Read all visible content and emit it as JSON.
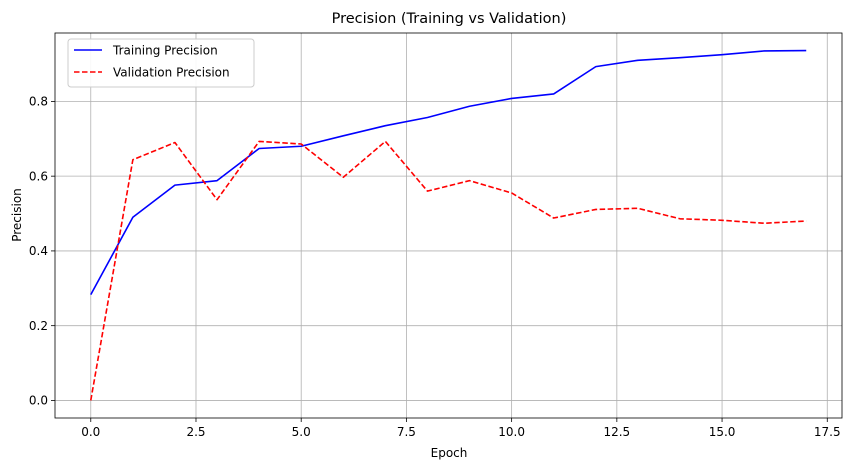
{
  "chart_data": {
    "type": "line",
    "title": "Precision (Training vs Validation)",
    "xlabel": "Epoch",
    "ylabel": "Precision",
    "xlim": [
      -0.85,
      17.85
    ],
    "ylim": [
      -0.047,
      0.983
    ],
    "xticks": [
      0.0,
      2.5,
      5.0,
      7.5,
      10.0,
      12.5,
      15.0,
      17.5
    ],
    "xtick_labels": [
      "0.0",
      "2.5",
      "5.0",
      "7.5",
      "10.0",
      "12.5",
      "15.0",
      "17.5"
    ],
    "yticks": [
      0.0,
      0.2,
      0.4,
      0.6,
      0.8
    ],
    "ytick_labels": [
      "0.0",
      "0.2",
      "0.4",
      "0.6",
      "0.8"
    ],
    "grid": true,
    "legend_position": "upper-left",
    "x": [
      0,
      1,
      2,
      3,
      4,
      5,
      6,
      7,
      8,
      9,
      10,
      11,
      12,
      13,
      14,
      15,
      16,
      17
    ],
    "series": [
      {
        "name": "Training Precision",
        "color": "#0000ff",
        "style": "solid",
        "values": [
          0.283,
          0.49,
          0.576,
          0.588,
          0.674,
          0.68,
          0.708,
          0.735,
          0.757,
          0.787,
          0.808,
          0.82,
          0.893,
          0.91,
          0.917,
          0.925,
          0.935,
          0.936
        ]
      },
      {
        "name": "Validation Precision",
        "color": "#ff0000",
        "style": "dashed",
        "values": [
          0.0,
          0.644,
          0.69,
          0.537,
          0.693,
          0.686,
          0.597,
          0.693,
          0.56,
          0.588,
          0.555,
          0.488,
          0.511,
          0.514,
          0.486,
          0.482,
          0.474,
          0.48
        ]
      }
    ]
  }
}
